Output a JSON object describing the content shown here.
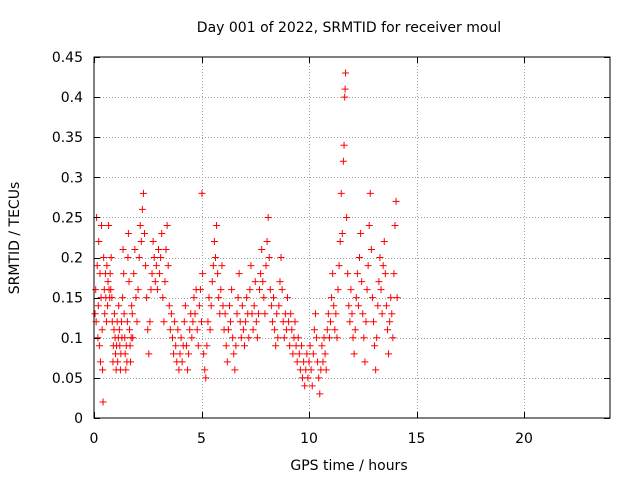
{
  "chart_data": {
    "type": "scatter",
    "title": "Day 001 of 2022, SRMTID for receiver moul",
    "xlabel": "GPS time / hours",
    "ylabel": "SRMTID / TECUs",
    "xlim": [
      0,
      24
    ],
    "ylim": [
      0,
      0.45
    ],
    "xticks": [
      0,
      5,
      10,
      15,
      20
    ],
    "yticks": [
      0,
      0.05,
      0.1,
      0.15,
      0.2,
      0.25,
      0.3,
      0.35,
      0.4,
      0.45
    ],
    "xtick_labels": [
      "0",
      "5",
      "10",
      "15",
      "20"
    ],
    "ytick_labels": [
      "0",
      "0.05",
      "0.1",
      "0.15",
      "0.2",
      "0.25",
      "0.3",
      "0.35",
      "0.4",
      "0.45"
    ],
    "grid": true,
    "marker": "+",
    "color": "#ff0000",
    "series": [
      {
        "name": "SRMTID",
        "points": [
          [
            0.05,
            0.13
          ],
          [
            0.08,
            0.16
          ],
          [
            0.1,
            0.12
          ],
          [
            0.12,
            0.25
          ],
          [
            0.15,
            0.19
          ],
          [
            0.18,
            0.1
          ],
          [
            0.2,
            0.14
          ],
          [
            0.22,
            0.22
          ],
          [
            0.25,
            0.09
          ],
          [
            0.28,
            0.18
          ],
          [
            0.3,
            0.07
          ],
          [
            0.33,
            0.15
          ],
          [
            0.35,
            0.24
          ],
          [
            0.38,
            0.11
          ],
          [
            0.4,
            0.06
          ],
          [
            0.42,
            0.02
          ],
          [
            0.45,
            0.2
          ],
          [
            0.48,
            0.16
          ],
          [
            0.5,
            0.13
          ],
          [
            0.53,
            0.18
          ],
          [
            0.55,
            0.15
          ],
          [
            0.58,
            0.12
          ],
          [
            0.6,
            0.19
          ],
          [
            0.63,
            0.14
          ],
          [
            0.65,
            0.17
          ],
          [
            0.68,
            0.24
          ],
          [
            0.7,
            0.16
          ],
          [
            0.73,
            0.15
          ],
          [
            0.75,
            0.18
          ],
          [
            0.78,
            0.16
          ],
          [
            0.8,
            0.2
          ],
          [
            0.83,
            0.15
          ],
          [
            0.85,
            0.12
          ],
          [
            0.88,
            0.07
          ],
          [
            0.9,
            0.09
          ],
          [
            0.93,
            0.11
          ],
          [
            0.95,
            0.13
          ],
          [
            0.98,
            0.1
          ],
          [
            1.0,
            0.08
          ],
          [
            1.03,
            0.06
          ],
          [
            1.05,
            0.09
          ],
          [
            1.08,
            0.12
          ],
          [
            1.1,
            0.07
          ],
          [
            1.13,
            0.1
          ],
          [
            1.15,
            0.14
          ],
          [
            1.18,
            0.11
          ],
          [
            1.2,
            0.09
          ],
          [
            1.23,
            0.06
          ],
          [
            1.25,
            0.08
          ],
          [
            1.28,
            0.12
          ],
          [
            1.3,
            0.1
          ],
          [
            1.33,
            0.15
          ],
          [
            1.35,
            0.21
          ],
          [
            1.38,
            0.18
          ],
          [
            1.4,
            0.13
          ],
          [
            1.43,
            0.1
          ],
          [
            1.45,
            0.08
          ],
          [
            1.48,
            0.06
          ],
          [
            1.5,
            0.09
          ],
          [
            1.53,
            0.07
          ],
          [
            1.55,
            0.12
          ],
          [
            1.58,
            0.2
          ],
          [
            1.6,
            0.23
          ],
          [
            1.63,
            0.17
          ],
          [
            1.65,
            0.11
          ],
          [
            1.68,
            0.09
          ],
          [
            1.7,
            0.07
          ],
          [
            1.73,
            0.1
          ],
          [
            1.75,
            0.14
          ],
          [
            1.78,
            0.13
          ],
          [
            1.8,
            0.1
          ],
          [
            1.85,
            0.18
          ],
          [
            1.9,
            0.21
          ],
          [
            1.95,
            0.15
          ],
          [
            2.0,
            0.12
          ],
          [
            2.05,
            0.16
          ],
          [
            2.1,
            0.2
          ],
          [
            2.15,
            0.24
          ],
          [
            2.2,
            0.22
          ],
          [
            2.25,
            0.26
          ],
          [
            2.3,
            0.28
          ],
          [
            2.35,
            0.23
          ],
          [
            2.4,
            0.19
          ],
          [
            2.45,
            0.15
          ],
          [
            2.5,
            0.11
          ],
          [
            2.55,
            0.08
          ],
          [
            2.6,
            0.12
          ],
          [
            2.65,
            0.16
          ],
          [
            2.7,
            0.18
          ],
          [
            2.75,
            0.22
          ],
          [
            2.8,
            0.2
          ],
          [
            2.85,
            0.17
          ],
          [
            2.9,
            0.19
          ],
          [
            2.95,
            0.16
          ],
          [
            3.0,
            0.21
          ],
          [
            3.05,
            0.18
          ],
          [
            3.1,
            0.2
          ],
          [
            3.15,
            0.23
          ],
          [
            3.2,
            0.15
          ],
          [
            3.25,
            0.12
          ],
          [
            3.3,
            0.17
          ],
          [
            3.35,
            0.21
          ],
          [
            3.4,
            0.24
          ],
          [
            3.45,
            0.19
          ],
          [
            3.5,
            0.14
          ],
          [
            3.55,
            0.11
          ],
          [
            3.6,
            0.13
          ],
          [
            3.65,
            0.1
          ],
          [
            3.7,
            0.08
          ],
          [
            3.75,
            0.12
          ],
          [
            3.8,
            0.09
          ],
          [
            3.85,
            0.07
          ],
          [
            3.9,
            0.11
          ],
          [
            3.95,
            0.06
          ],
          [
            4.0,
            0.08
          ],
          [
            4.05,
            0.1
          ],
          [
            4.1,
            0.07
          ],
          [
            4.15,
            0.09
          ],
          [
            4.2,
            0.12
          ],
          [
            4.25,
            0.14
          ],
          [
            4.3,
            0.09
          ],
          [
            4.35,
            0.06
          ],
          [
            4.4,
            0.08
          ],
          [
            4.45,
            0.11
          ],
          [
            4.5,
            0.13
          ],
          [
            4.55,
            0.1
          ],
          [
            4.6,
            0.12
          ],
          [
            4.65,
            0.15
          ],
          [
            4.7,
            0.13
          ],
          [
            4.75,
            0.16
          ],
          [
            4.8,
            0.11
          ],
          [
            4.85,
            0.09
          ],
          [
            4.9,
            0.14
          ],
          [
            4.95,
            0.16
          ],
          [
            5.0,
            0.12
          ],
          [
            5.02,
            0.28
          ],
          [
            5.05,
            0.18
          ],
          [
            5.1,
            0.08
          ],
          [
            5.15,
            0.06
          ],
          [
            5.2,
            0.05
          ],
          [
            5.25,
            0.09
          ],
          [
            5.3,
            0.12
          ],
          [
            5.35,
            0.15
          ],
          [
            5.4,
            0.11
          ],
          [
            5.45,
            0.14
          ],
          [
            5.5,
            0.17
          ],
          [
            5.55,
            0.19
          ],
          [
            5.6,
            0.22
          ],
          [
            5.65,
            0.2
          ],
          [
            5.7,
            0.24
          ],
          [
            5.75,
            0.18
          ],
          [
            5.8,
            0.15
          ],
          [
            5.85,
            0.13
          ],
          [
            5.9,
            0.16
          ],
          [
            5.95,
            0.19
          ],
          [
            6.0,
            0.14
          ],
          [
            6.05,
            0.11
          ],
          [
            6.1,
            0.13
          ],
          [
            6.15,
            0.09
          ],
          [
            6.2,
            0.07
          ],
          [
            6.25,
            0.11
          ],
          [
            6.3,
            0.14
          ],
          [
            6.35,
            0.12
          ],
          [
            6.4,
            0.16
          ],
          [
            6.45,
            0.1
          ],
          [
            6.5,
            0.08
          ],
          [
            6.55,
            0.06
          ],
          [
            6.6,
            0.09
          ],
          [
            6.65,
            0.13
          ],
          [
            6.7,
            0.15
          ],
          [
            6.75,
            0.18
          ],
          [
            6.8,
            0.12
          ],
          [
            6.85,
            0.1
          ],
          [
            6.9,
            0.14
          ],
          [
            6.95,
            0.11
          ],
          [
            7.0,
            0.09
          ],
          [
            7.05,
            0.12
          ],
          [
            7.1,
            0.15
          ],
          [
            7.15,
            0.13
          ],
          [
            7.2,
            0.1
          ],
          [
            7.25,
            0.16
          ],
          [
            7.3,
            0.19
          ],
          [
            7.35,
            0.13
          ],
          [
            7.4,
            0.11
          ],
          [
            7.45,
            0.14
          ],
          [
            7.5,
            0.17
          ],
          [
            7.55,
            0.12
          ],
          [
            7.6,
            0.1
          ],
          [
            7.65,
            0.13
          ],
          [
            7.7,
            0.16
          ],
          [
            7.75,
            0.18
          ],
          [
            7.8,
            0.21
          ],
          [
            7.85,
            0.17
          ],
          [
            7.9,
            0.15
          ],
          [
            7.95,
            0.13
          ],
          [
            8.0,
            0.19
          ],
          [
            8.05,
            0.22
          ],
          [
            8.1,
            0.25
          ],
          [
            8.15,
            0.2
          ],
          [
            8.2,
            0.16
          ],
          [
            8.25,
            0.14
          ],
          [
            8.3,
            0.12
          ],
          [
            8.35,
            0.15
          ],
          [
            8.4,
            0.11
          ],
          [
            8.45,
            0.09
          ],
          [
            8.5,
            0.13
          ],
          [
            8.55,
            0.1
          ],
          [
            8.6,
            0.14
          ],
          [
            8.65,
            0.17
          ],
          [
            8.7,
            0.2
          ],
          [
            8.75,
            0.16
          ],
          [
            8.8,
            0.12
          ],
          [
            8.85,
            0.1
          ],
          [
            8.9,
            0.13
          ],
          [
            8.95,
            0.11
          ],
          [
            9.0,
            0.15
          ],
          [
            9.05,
            0.12
          ],
          [
            9.1,
            0.09
          ],
          [
            9.15,
            0.13
          ],
          [
            9.2,
            0.11
          ],
          [
            9.25,
            0.08
          ],
          [
            9.3,
            0.1
          ],
          [
            9.35,
            0.12
          ],
          [
            9.4,
            0.09
          ],
          [
            9.45,
            0.07
          ],
          [
            9.5,
            0.1
          ],
          [
            9.55,
            0.08
          ],
          [
            9.6,
            0.06
          ],
          [
            9.65,
            0.09
          ],
          [
            9.7,
            0.05
          ],
          [
            9.75,
            0.07
          ],
          [
            9.8,
            0.04
          ],
          [
            9.85,
            0.06
          ],
          [
            9.9,
            0.08
          ],
          [
            9.95,
            0.05
          ],
          [
            10.0,
            0.07
          ],
          [
            10.05,
            0.09
          ],
          [
            10.1,
            0.06
          ],
          [
            10.15,
            0.04
          ],
          [
            10.2,
            0.08
          ],
          [
            10.25,
            0.11
          ],
          [
            10.3,
            0.13
          ],
          [
            10.35,
            0.1
          ],
          [
            10.4,
            0.07
          ],
          [
            10.45,
            0.05
          ],
          [
            10.5,
            0.03
          ],
          [
            10.55,
            0.06
          ],
          [
            10.6,
            0.09
          ],
          [
            10.65,
            0.07
          ],
          [
            10.7,
            0.1
          ],
          [
            10.75,
            0.08
          ],
          [
            10.8,
            0.06
          ],
          [
            10.85,
            0.11
          ],
          [
            10.9,
            0.13
          ],
          [
            10.95,
            0.1
          ],
          [
            11.0,
            0.12
          ],
          [
            11.05,
            0.15
          ],
          [
            11.1,
            0.18
          ],
          [
            11.15,
            0.14
          ],
          [
            11.2,
            0.11
          ],
          [
            11.25,
            0.13
          ],
          [
            11.3,
            0.1
          ],
          [
            11.35,
            0.16
          ],
          [
            11.4,
            0.19
          ],
          [
            11.45,
            0.22
          ],
          [
            11.5,
            0.28
          ],
          [
            11.55,
            0.23
          ],
          [
            11.6,
            0.32
          ],
          [
            11.63,
            0.34
          ],
          [
            11.66,
            0.4
          ],
          [
            11.68,
            0.41
          ],
          [
            11.7,
            0.43
          ],
          [
            11.75,
            0.25
          ],
          [
            11.8,
            0.18
          ],
          [
            11.85,
            0.14
          ],
          [
            11.9,
            0.12
          ],
          [
            11.95,
            0.16
          ],
          [
            12.0,
            0.13
          ],
          [
            12.05,
            0.1
          ],
          [
            12.1,
            0.08
          ],
          [
            12.15,
            0.11
          ],
          [
            12.2,
            0.15
          ],
          [
            12.25,
            0.18
          ],
          [
            12.3,
            0.14
          ],
          [
            12.35,
            0.2
          ],
          [
            12.4,
            0.23
          ],
          [
            12.45,
            0.17
          ],
          [
            12.5,
            0.13
          ],
          [
            12.55,
            0.1
          ],
          [
            12.6,
            0.07
          ],
          [
            12.65,
            0.12
          ],
          [
            12.7,
            0.16
          ],
          [
            12.75,
            0.19
          ],
          [
            12.8,
            0.24
          ],
          [
            12.85,
            0.28
          ],
          [
            12.9,
            0.21
          ],
          [
            12.95,
            0.15
          ],
          [
            13.0,
            0.12
          ],
          [
            13.05,
            0.09
          ],
          [
            13.1,
            0.06
          ],
          [
            13.15,
            0.1
          ],
          [
            13.2,
            0.14
          ],
          [
            13.25,
            0.17
          ],
          [
            13.3,
            0.2
          ],
          [
            13.35,
            0.16
          ],
          [
            13.4,
            0.13
          ],
          [
            13.45,
            0.19
          ],
          [
            13.5,
            0.22
          ],
          [
            13.55,
            0.18
          ],
          [
            13.6,
            0.14
          ],
          [
            13.65,
            0.11
          ],
          [
            13.7,
            0.08
          ],
          [
            13.75,
            0.12
          ],
          [
            13.8,
            0.15
          ],
          [
            13.85,
            0.13
          ],
          [
            13.9,
            0.1
          ],
          [
            13.95,
            0.18
          ],
          [
            14.0,
            0.24
          ],
          [
            14.05,
            0.27
          ],
          [
            14.1,
            0.15
          ]
        ]
      }
    ]
  }
}
